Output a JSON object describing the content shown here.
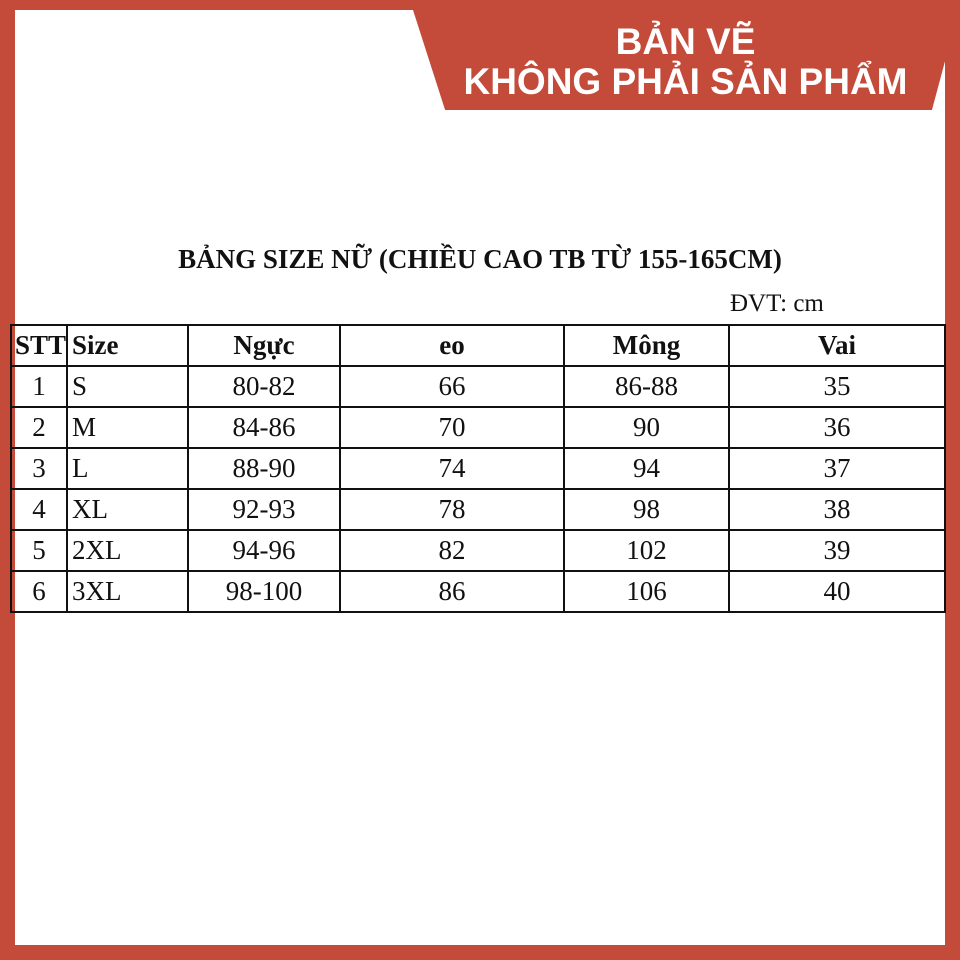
{
  "banner": {
    "line1": "BẢN VẼ",
    "line2": "KHÔNG PHẢI SẢN PHẨM"
  },
  "title": "BẢNG SIZE NỮ (CHIỀU CAO TB TỪ 155-165CM)",
  "unit": "ĐVT: cm",
  "table": {
    "headers": [
      "STT",
      "Size",
      "Ngực",
      "eo",
      "Mông",
      "Vai"
    ],
    "rows": [
      [
        "1",
        "S",
        "80-82",
        "66",
        "86-88",
        "35"
      ],
      [
        "2",
        "M",
        "84-86",
        "70",
        "90",
        "36"
      ],
      [
        "3",
        "L",
        "88-90",
        "74",
        "94",
        "37"
      ],
      [
        "4",
        "XL",
        "92-93",
        "78",
        "98",
        "38"
      ],
      [
        "5",
        "2XL",
        "94-96",
        "82",
        "102",
        "39"
      ],
      [
        "6",
        "3XL",
        "98-100",
        "86",
        "106",
        "40"
      ]
    ]
  },
  "colors": {
    "accent": "#c44a39"
  }
}
